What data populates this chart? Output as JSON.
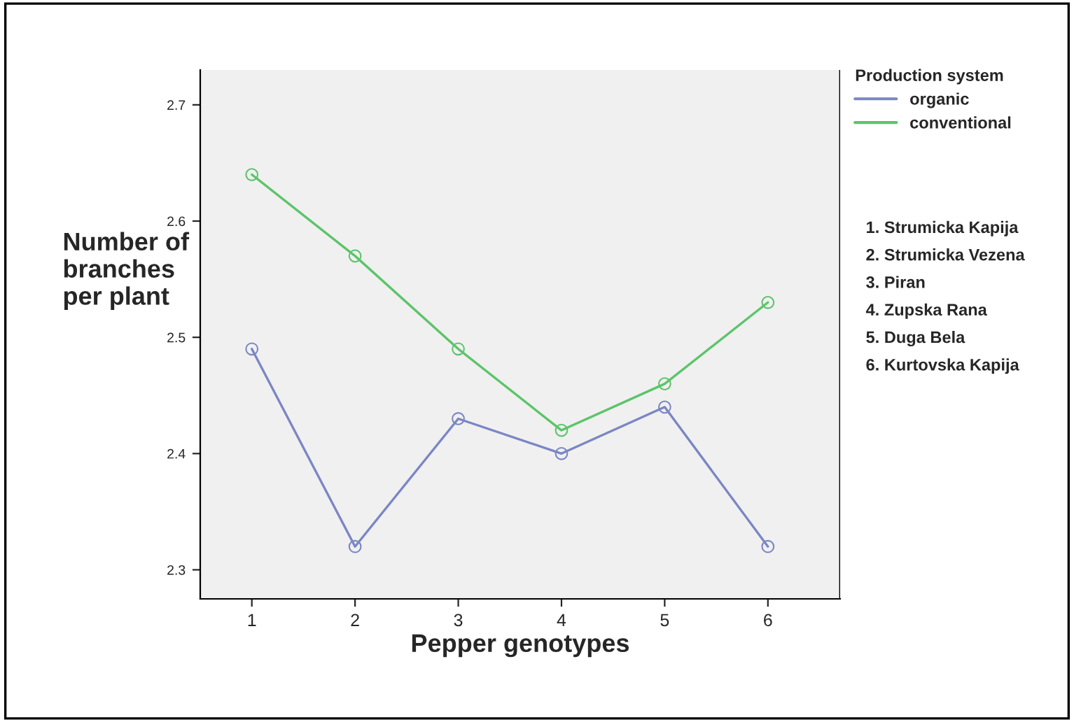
{
  "chart_data": {
    "type": "line",
    "xlabel": "Pepper genotypes",
    "ylabel": "Number of\nbranches\nper plant",
    "legend_title": "Production system",
    "categories": [
      "1",
      "2",
      "3",
      "4",
      "5",
      "6"
    ],
    "series": [
      {
        "name": "organic",
        "color": "#7b86c4",
        "values": [
          2.49,
          2.32,
          2.43,
          2.4,
          2.44,
          2.32
        ]
      },
      {
        "name": "conventional",
        "color": "#5cc46a",
        "values": [
          2.64,
          2.57,
          2.49,
          2.42,
          2.46,
          2.53
        ]
      }
    ],
    "ylim": [
      2.275,
      2.73
    ],
    "yticks": [
      2.3,
      2.4,
      2.5,
      2.6,
      2.7
    ],
    "grid": false,
    "legend": "right",
    "marker": "circle",
    "line_style": "solid",
    "annotations": [
      "1. Strumicka Kapija",
      "2. Strumicka Vezena",
      "3. Piran",
      "4. Zupska Rana",
      "5. Duga Bela",
      "6. Kurtovska Kapija"
    ]
  }
}
